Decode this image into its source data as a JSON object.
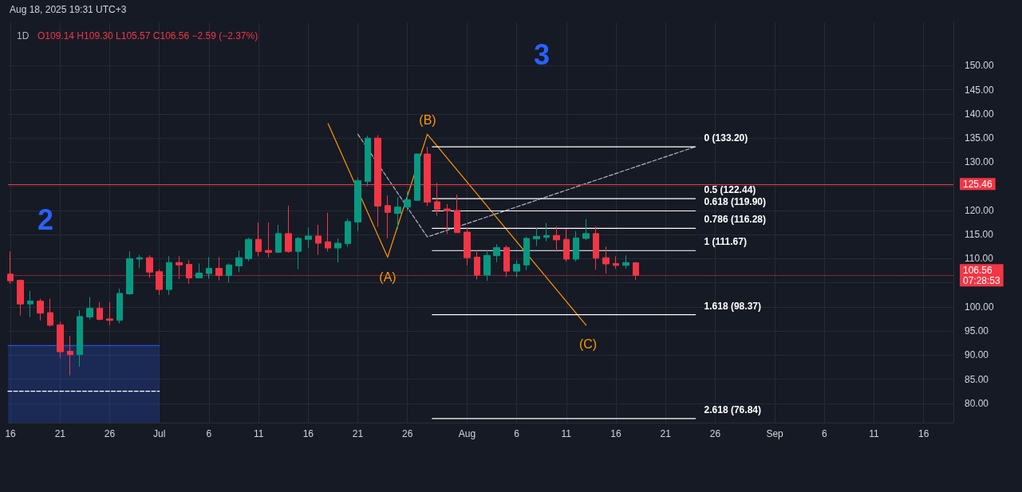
{
  "chart_data": {
    "type": "candlestick",
    "title": "1D",
    "subtitle": "O109.14 H109.30 L105.57 C106.56 −2.59 (−2.37%)",
    "annotations": [
      "Aug 18, 2025 19:31 UTC+3",
      "2",
      "3",
      "(A)",
      "(B)",
      "(C)"
    ],
    "x": [
      "2025-06-16",
      "2025-06-17",
      "2025-06-18",
      "2025-06-19",
      "2025-06-20",
      "2025-06-21",
      "2025-06-22",
      "2025-06-23",
      "2025-06-24",
      "2025-06-25",
      "2025-06-26",
      "2025-06-27",
      "2025-06-28",
      "2025-06-29",
      "2025-06-30",
      "2025-07-01",
      "2025-07-02",
      "2025-07-03",
      "2025-07-04",
      "2025-07-05",
      "2025-07-06",
      "2025-07-07",
      "2025-07-08",
      "2025-07-09",
      "2025-07-10",
      "2025-07-11",
      "2025-07-12",
      "2025-07-13",
      "2025-07-14",
      "2025-07-15",
      "2025-07-16",
      "2025-07-17",
      "2025-07-18",
      "2025-07-19",
      "2025-07-20",
      "2025-07-21",
      "2025-07-22",
      "2025-07-23",
      "2025-07-24",
      "2025-07-25",
      "2025-07-26",
      "2025-07-27",
      "2025-07-28",
      "2025-07-29",
      "2025-07-30",
      "2025-07-31",
      "2025-08-01",
      "2025-08-02",
      "2025-08-03",
      "2025-08-04",
      "2025-08-05",
      "2025-08-06",
      "2025-08-07",
      "2025-08-08",
      "2025-08-09",
      "2025-08-10",
      "2025-08-11",
      "2025-08-12",
      "2025-08-13",
      "2025-08-14",
      "2025-08-15",
      "2025-08-16",
      "2025-08-17",
      "2025-08-18"
    ],
    "ohlc": [
      [
        106.8,
        111.5,
        104.8,
        105.4
      ],
      [
        105.5,
        105.7,
        98.2,
        100.6
      ],
      [
        100.6,
        103.3,
        97.9,
        101.2
      ],
      [
        101.2,
        101.7,
        97.2,
        98.7
      ],
      [
        98.8,
        101.7,
        95.9,
        96.2
      ],
      [
        96.3,
        96.9,
        89.4,
        90.7
      ],
      [
        90.8,
        94.0,
        85.8,
        90.1
      ],
      [
        90.1,
        99.3,
        87.6,
        98.0
      ],
      [
        97.9,
        102.0,
        97.4,
        99.7
      ],
      [
        99.7,
        101.0,
        97.2,
        97.4
      ],
      [
        97.5,
        101.0,
        96.2,
        97.2
      ],
      [
        97.2,
        103.8,
        96.6,
        102.8
      ],
      [
        102.7,
        111.5,
        102.5,
        110.0
      ],
      [
        109.9,
        110.8,
        108.0,
        110.2
      ],
      [
        110.2,
        110.7,
        106.0,
        107.2
      ],
      [
        107.3,
        107.8,
        102.5,
        103.6
      ],
      [
        103.6,
        110.5,
        102.5,
        109.2
      ],
      [
        109.2,
        110.5,
        105.8,
        108.7
      ],
      [
        108.8,
        109.7,
        104.8,
        106.0
      ],
      [
        106.0,
        109.0,
        106.0,
        107.0
      ],
      [
        106.9,
        110.3,
        105.8,
        108.0
      ],
      [
        108.0,
        110.3,
        105.5,
        106.5
      ],
      [
        106.5,
        109.0,
        105.0,
        108.7
      ],
      [
        108.5,
        111.7,
        107.2,
        110.2
      ],
      [
        110.0,
        114.3,
        109.5,
        114.0
      ],
      [
        114.0,
        117.5,
        110.5,
        111.5
      ],
      [
        111.7,
        117.5,
        110.3,
        111.3
      ],
      [
        111.3,
        117.0,
        111.3,
        115.2
      ],
      [
        115.2,
        121.0,
        111.2,
        111.5
      ],
      [
        111.5,
        114.5,
        107.8,
        114.2
      ],
      [
        114.0,
        116.5,
        112.2,
        114.7
      ],
      [
        114.7,
        117.0,
        110.8,
        113.2
      ],
      [
        113.5,
        119.5,
        111.5,
        112.2
      ],
      [
        112.2,
        114.2,
        109.2,
        113.2
      ],
      [
        113.1,
        118.3,
        112.4,
        117.7
      ],
      [
        117.6,
        126.8,
        115.7,
        126.2
      ],
      [
        126.0,
        135.5,
        125.0,
        135.0
      ],
      [
        135.0,
        135.6,
        116.6,
        120.9
      ],
      [
        121.0,
        123.1,
        114.2,
        119.6
      ],
      [
        119.4,
        122.7,
        116.1,
        120.7
      ],
      [
        120.7,
        124.0,
        120.0,
        122.2
      ],
      [
        122.1,
        131.8,
        122.1,
        131.7
      ],
      [
        131.7,
        133.2,
        120.9,
        121.7
      ],
      [
        121.8,
        125.7,
        118.9,
        120.2
      ],
      [
        120.3,
        121.3,
        115.1,
        119.9
      ],
      [
        120.0,
        123.3,
        115.4,
        115.4
      ],
      [
        115.5,
        116.4,
        108.6,
        110.2
      ],
      [
        110.3,
        111.8,
        105.7,
        106.6
      ],
      [
        106.6,
        111.7,
        105.4,
        110.7
      ],
      [
        110.6,
        113.0,
        109.3,
        112.3
      ],
      [
        112.3,
        112.7,
        106.2,
        107.4
      ],
      [
        107.4,
        109.7,
        106.1,
        108.8
      ],
      [
        108.7,
        114.6,
        107.6,
        114.2
      ],
      [
        114.1,
        116.4,
        112.6,
        114.6
      ],
      [
        114.4,
        117.4,
        113.6,
        114.8
      ],
      [
        114.8,
        116.7,
        111.4,
        113.9
      ],
      [
        114.0,
        116.2,
        109.4,
        109.9
      ],
      [
        109.9,
        115.7,
        109.4,
        114.3
      ],
      [
        114.2,
        118.2,
        113.9,
        115.2
      ],
      [
        115.2,
        116.7,
        107.7,
        110.1
      ],
      [
        110.2,
        112.5,
        106.9,
        108.9
      ],
      [
        109.0,
        110.5,
        107.9,
        108.6
      ],
      [
        108.6,
        110.7,
        107.9,
        109.2
      ],
      [
        109.14,
        109.3,
        105.57,
        106.56
      ]
    ],
    "colors": [
      "#f23645",
      "#f23645",
      "#089981",
      "#f23645",
      "#f23645",
      "#f23645",
      "#f23645",
      "#089981",
      "#089981",
      "#f23645",
      "#f23645",
      "#089981",
      "#089981",
      "#089981",
      "#f23645",
      "#f23645",
      "#089981",
      "#f23645",
      "#f23645",
      "#089981",
      "#089981",
      "#f23645",
      "#089981",
      "#089981",
      "#089981",
      "#f23645",
      "#f23645",
      "#089981",
      "#f23645",
      "#089981",
      "#089981",
      "#f23645",
      "#f23645",
      "#089981",
      "#089981",
      "#089981",
      "#089981",
      "#f23645",
      "#f23645",
      "#089981",
      "#089981",
      "#089981",
      "#f23645",
      "#f23645",
      "#f23645",
      "#f23645",
      "#f23645",
      "#f23645",
      "#089981",
      "#089981",
      "#f23645",
      "#089981",
      "#089981",
      "#089981",
      "#089981",
      "#f23645",
      "#f23645",
      "#089981",
      "#089981",
      "#f23645",
      "#f23645",
      "#f23645",
      "#089981",
      "#f23645"
    ],
    "series": [
      {
        "type": "area",
        "color": "#2962ff",
        "x": [
          "2025-06-15T18:00",
          "2025-07-01"
        ],
        "values": [
          92,
          92
        ]
      },
      {
        "type": "line",
        "color": "#ffffff",
        "line_style": "dashed",
        "x": [
          "2025-06-15T18:00",
          "2025-07-01"
        ],
        "values": [
          82.5,
          82.5
        ]
      },
      {
        "type": "line",
        "color": "#ff9800",
        "line_style": "solid",
        "x": [
          "2025-07-18",
          "2025-07-24",
          "2025-07-28",
          "2025-08-13"
        ],
        "values": [
          138,
          110.3,
          135.8,
          96.2
        ]
      },
      {
        "type": "line",
        "color": "#b2b5be",
        "line_style": "dashed",
        "x": [
          "2025-07-21",
          "2025-07-28",
          "2025-08-24"
        ],
        "values": [
          135.8,
          114.5,
          133.2
        ]
      },
      {
        "type": "line",
        "name": "0 (133.20)",
        "color": "#ffffff",
        "line_style": "solid",
        "x": [
          "2025-07-28T12:00",
          "2025-08-24"
        ],
        "values": [
          133.2,
          133.2
        ]
      },
      {
        "type": "line",
        "name": "0.5 (122.44)",
        "color": "#ffffff",
        "line_style": "solid",
        "x": [
          "2025-07-28T12:00",
          "2025-08-24"
        ],
        "values": [
          122.44,
          122.44
        ]
      },
      {
        "type": "line",
        "name": "0.618 (119.90)",
        "color": "#ffffff",
        "line_style": "solid",
        "x": [
          "2025-07-28T12:00",
          "2025-08-24"
        ],
        "values": [
          119.9,
          119.9
        ]
      },
      {
        "type": "line",
        "name": "0.786 (116.28)",
        "color": "#ffffff",
        "line_style": "solid",
        "x": [
          "2025-07-28T12:00",
          "2025-08-24"
        ],
        "values": [
          116.28,
          116.28
        ]
      },
      {
        "type": "line",
        "name": "1 (111.67)",
        "color": "#ffffff",
        "line_style": "solid",
        "x": [
          "2025-07-28T12:00",
          "2025-08-24"
        ],
        "values": [
          111.67,
          111.67
        ]
      },
      {
        "type": "line",
        "name": "1.618 (98.37)",
        "color": "#ffffff",
        "line_style": "solid",
        "x": [
          "2025-07-28T12:00",
          "2025-08-24"
        ],
        "values": [
          98.37,
          98.37
        ]
      },
      {
        "type": "line",
        "name": "2.618 (76.84)",
        "color": "#ffffff",
        "line_style": "solid",
        "x": [
          "2025-07-28T12:00",
          "2025-08-24"
        ],
        "values": [
          76.84,
          76.84
        ]
      }
    ],
    "ref_lines": [
      {
        "axis": "y",
        "value": 125.46,
        "label": "125.46",
        "color": "#f23645",
        "line_style": "solid"
      },
      {
        "axis": "y",
        "value": 106.56,
        "label": "106.56\n07:28:53",
        "color": "#f23645",
        "line_style": "dotted"
      }
    ],
    "xlim": [
      "2025-06-15T18:00",
      "2025-09-19"
    ],
    "xticks": [
      {
        "value": "2025-06-16",
        "label": "16"
      },
      {
        "value": "2025-06-21",
        "label": "21"
      },
      {
        "value": "2025-06-26",
        "label": "26"
      },
      {
        "value": "2025-07-01",
        "label": "Jul"
      },
      {
        "value": "2025-07-06",
        "label": "6"
      },
      {
        "value": "2025-07-11",
        "label": "11"
      },
      {
        "value": "2025-07-16",
        "label": "16"
      },
      {
        "value": "2025-07-21",
        "label": "21"
      },
      {
        "value": "2025-07-26",
        "label": "26"
      },
      {
        "value": "2025-08-01",
        "label": "Aug"
      },
      {
        "value": "2025-08-06",
        "label": "6"
      },
      {
        "value": "2025-08-11",
        "label": "11"
      },
      {
        "value": "2025-08-16",
        "label": "16"
      },
      {
        "value": "2025-08-21",
        "label": "21"
      },
      {
        "value": "2025-08-26",
        "label": "26"
      },
      {
        "value": "2025-09-01",
        "label": "Sep"
      },
      {
        "value": "2025-09-06",
        "label": "6"
      },
      {
        "value": "2025-09-11",
        "label": "11"
      },
      {
        "value": "2025-09-16",
        "label": "16"
      }
    ],
    "ylim": [
      76,
      159
    ],
    "yticks": [
      {
        "value": 80,
        "label": "80.00"
      },
      {
        "value": 85,
        "label": "85.00"
      },
      {
        "value": 90,
        "label": "90.00"
      },
      {
        "value": 95,
        "label": "95.00"
      },
      {
        "value": 100,
        "label": "100.00"
      },
      {
        "value": 105,
        "label": null
      },
      {
        "value": 110,
        "label": "110.00"
      },
      {
        "value": 115,
        "label": "115.00"
      },
      {
        "value": 120,
        "label": "120.00"
      },
      {
        "value": 125,
        "label": null
      },
      {
        "value": 130,
        "label": "130.00"
      },
      {
        "value": 135,
        "label": "135.00"
      },
      {
        "value": 140,
        "label": "140.00"
      },
      {
        "value": 145,
        "label": "145.00"
      },
      {
        "value": 150,
        "label": "150.00"
      }
    ],
    "grid": true,
    "legend": false
  }
}
